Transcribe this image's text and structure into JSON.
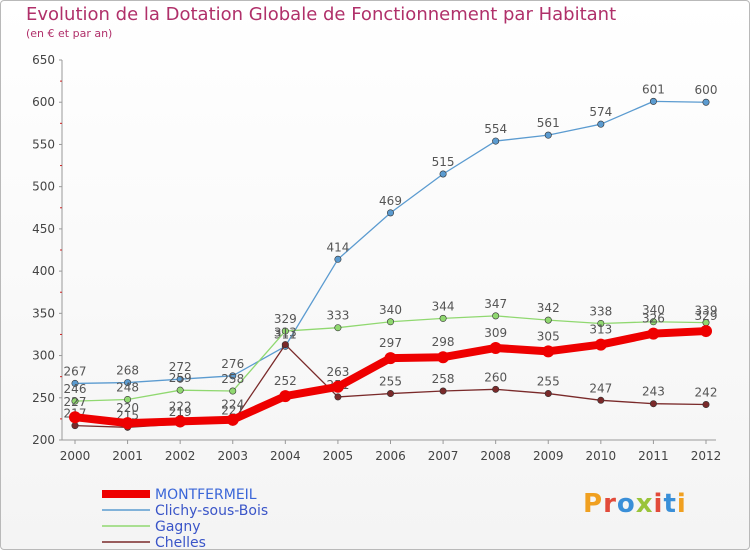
{
  "title": "Evolution de la Dotation Globale de Fonctionnement par Habitant",
  "subtitle": "(en € et par an)",
  "logo": {
    "text": "Proxiti",
    "colors": [
      "#f0a020",
      "#e24a3a",
      "#3a8fd8",
      "#9ac43a",
      "#e24a3a",
      "#3a8fd8",
      "#f0a020"
    ]
  },
  "chart_data": {
    "type": "line",
    "title": "Evolution de la Dotation Globale de Fonctionnement par Habitant",
    "subtitle": "(en € et par an)",
    "categories": [
      "2000",
      "2001",
      "2002",
      "2003",
      "2004",
      "2005",
      "2006",
      "2007",
      "2008",
      "2009",
      "2010",
      "2011",
      "2012"
    ],
    "ylim": [
      200,
      650
    ],
    "yticks": [
      200,
      250,
      300,
      350,
      400,
      450,
      500,
      550,
      600,
      650
    ],
    "grid": false,
    "legend": "bottom-left",
    "series": [
      {
        "name": "Clichy-sous-Bois",
        "color": "#5b9bd0",
        "values": [
          267,
          268,
          272,
          276,
          311,
          414,
          469,
          515,
          554,
          561,
          574,
          601,
          600
        ]
      },
      {
        "name": "Gagny",
        "color": "#90d870",
        "values": [
          246,
          248,
          259,
          258,
          329,
          333,
          340,
          344,
          347,
          342,
          338,
          340,
          339
        ]
      },
      {
        "name": "Chelles",
        "color": "#7a2a2a",
        "values": [
          217,
          215,
          219,
          221,
          313,
          251,
          255,
          258,
          260,
          255,
          247,
          243,
          242
        ]
      },
      {
        "name": "MONTFERMEIL",
        "color": "#ee0000",
        "values": [
          227,
          220,
          222,
          224,
          252,
          263,
          297,
          298,
          309,
          305,
          313,
          326,
          329
        ]
      }
    ],
    "legend_order": [
      "MONTFERMEIL",
      "Clichy-sous-Bois",
      "Gagny",
      "Chelles"
    ]
  }
}
